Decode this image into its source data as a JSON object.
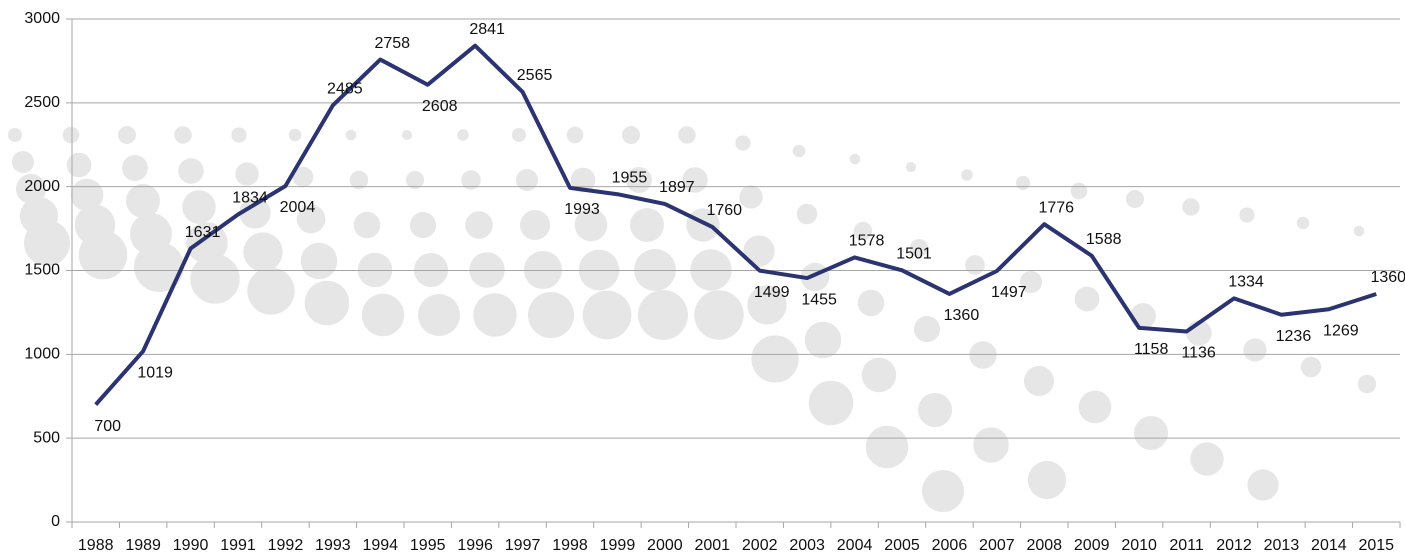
{
  "chart_data": {
    "type": "line",
    "categories": [
      "1988",
      "1989",
      "1990",
      "1991",
      "1992",
      "1993",
      "1994",
      "1995",
      "1996",
      "1997",
      "1998",
      "1999",
      "2000",
      "2001",
      "2002",
      "2003",
      "2004",
      "2005",
      "2006",
      "2007",
      "2008",
      "2009",
      "2010",
      "2011",
      "2012",
      "2013",
      "2014",
      "2015"
    ],
    "values": [
      700,
      1019,
      1631,
      1834,
      2004,
      2485,
      2758,
      2608,
      2841,
      2565,
      1993,
      1955,
      1897,
      1760,
      1499,
      1455,
      1578,
      1501,
      1360,
      1497,
      1776,
      1588,
      1158,
      1136,
      1334,
      1236,
      1269,
      1360
    ],
    "color": "#2b3370",
    "ylim": [
      0,
      3000
    ],
    "yticks": [
      0,
      500,
      1000,
      1500,
      2000,
      2500,
      3000
    ],
    "grid": true
  }
}
